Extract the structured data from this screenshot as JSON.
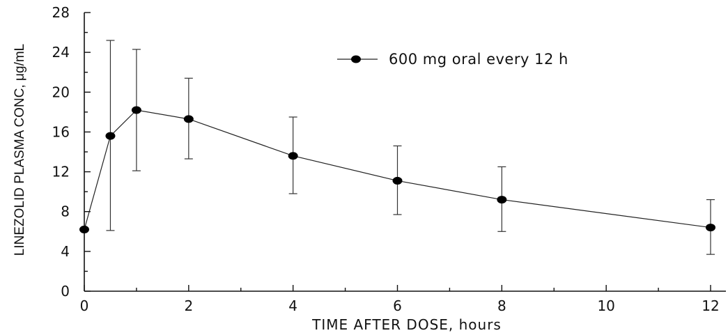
{
  "chart_data": {
    "type": "line",
    "xlabel": "TIME AFTER DOSE, hours",
    "ylabel": "LINEZOLID PLASMA CONC, μg/mL",
    "xlim": [
      0,
      12
    ],
    "ylim": [
      0,
      28
    ],
    "x_ticks": [
      0,
      2,
      4,
      6,
      8,
      10,
      12
    ],
    "y_ticks": [
      0,
      4,
      8,
      12,
      16,
      20,
      24,
      28
    ],
    "grid": false,
    "legend_position": "top-right",
    "series": [
      {
        "name": "600 mg oral every 12 h",
        "x": [
          0,
          0.5,
          1,
          2,
          4,
          6,
          8,
          12
        ],
        "y": [
          6.2,
          15.6,
          18.2,
          17.3,
          13.6,
          11.1,
          9.2,
          6.4
        ],
        "error_low": [
          6.2,
          6.1,
          12.1,
          13.3,
          9.8,
          7.7,
          6.0,
          3.7
        ],
        "error_high": [
          6.2,
          25.2,
          24.3,
          21.4,
          17.5,
          14.6,
          12.5,
          9.2
        ]
      }
    ]
  }
}
